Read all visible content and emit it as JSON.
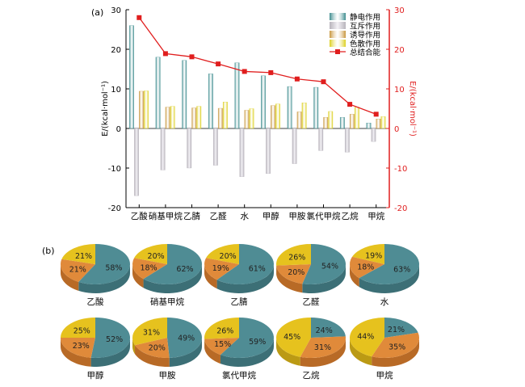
{
  "chart_data": [
    {
      "type": "bar",
      "panel_label": "(a)",
      "categories": [
        "乙酸",
        "硝基甲烷",
        "乙腈",
        "乙醛",
        "水",
        "甲醇",
        "甲胺",
        "氯代甲烷",
        "乙烷",
        "甲烷"
      ],
      "series": [
        {
          "name": "静电作用",
          "color": "#3d8c8e",
          "values": [
            26,
            18,
            17.2,
            13.8,
            16.6,
            13.3,
            10.6,
            10.4,
            2.8,
            1.4
          ]
        },
        {
          "name": "互斥作用",
          "color": "#b8b4bc",
          "values": [
            -17,
            -10.5,
            -10,
            -9.3,
            -12.2,
            -11.4,
            -8.9,
            -5.6,
            -6,
            -3.3
          ]
        },
        {
          "name": "诱导作用",
          "color": "#c8963c",
          "values": [
            9.4,
            5.4,
            5.2,
            5.1,
            4.6,
            5.8,
            4.2,
            2.8,
            3.6,
            2.4
          ]
        },
        {
          "name": "色散作用",
          "color": "#dccf1e",
          "values": [
            9.5,
            5.6,
            5.6,
            6.7,
            5.0,
            6.2,
            6.5,
            4.3,
            5.4,
            3.0
          ]
        }
      ],
      "line_series": {
        "name": "总结合能",
        "color": "#e01e1e",
        "values": [
          28,
          18.9,
          18.1,
          16.3,
          14.4,
          14.1,
          12.5,
          11.8,
          6.1,
          3.6
        ]
      },
      "ylabel_left": "E/(kcal·mol⁻¹)",
      "ylabel_right": "E/(kcal·mol⁻¹)",
      "ylim": [
        -20,
        30
      ],
      "yticks": [
        30,
        20,
        10,
        0,
        -10,
        -20
      ],
      "legend_position": "top-right"
    },
    {
      "type": "pie",
      "panel_label": "(b)",
      "slice_colors": [
        "#4f8c94",
        "#e08a3a",
        "#e6c21e"
      ],
      "pies": [
        {
          "name": "乙酸",
          "values": [
            58,
            21,
            21
          ]
        },
        {
          "name": "硝基甲烷",
          "values": [
            62,
            18,
            20
          ]
        },
        {
          "name": "乙腈",
          "values": [
            61,
            19,
            20
          ]
        },
        {
          "name": "乙醛",
          "values": [
            54,
            20,
            26
          ]
        },
        {
          "name": "水",
          "values": [
            63,
            18,
            19
          ]
        },
        {
          "name": "甲醇",
          "values": [
            52,
            23,
            25
          ]
        },
        {
          "name": "甲胺",
          "values": [
            49,
            20,
            31
          ]
        },
        {
          "name": "氯代甲烷",
          "values": [
            59,
            15,
            26
          ]
        },
        {
          "name": "乙烷",
          "values": [
            24,
            31,
            45
          ]
        },
        {
          "name": "甲烷",
          "values": [
            21,
            35,
            44
          ]
        }
      ]
    }
  ]
}
